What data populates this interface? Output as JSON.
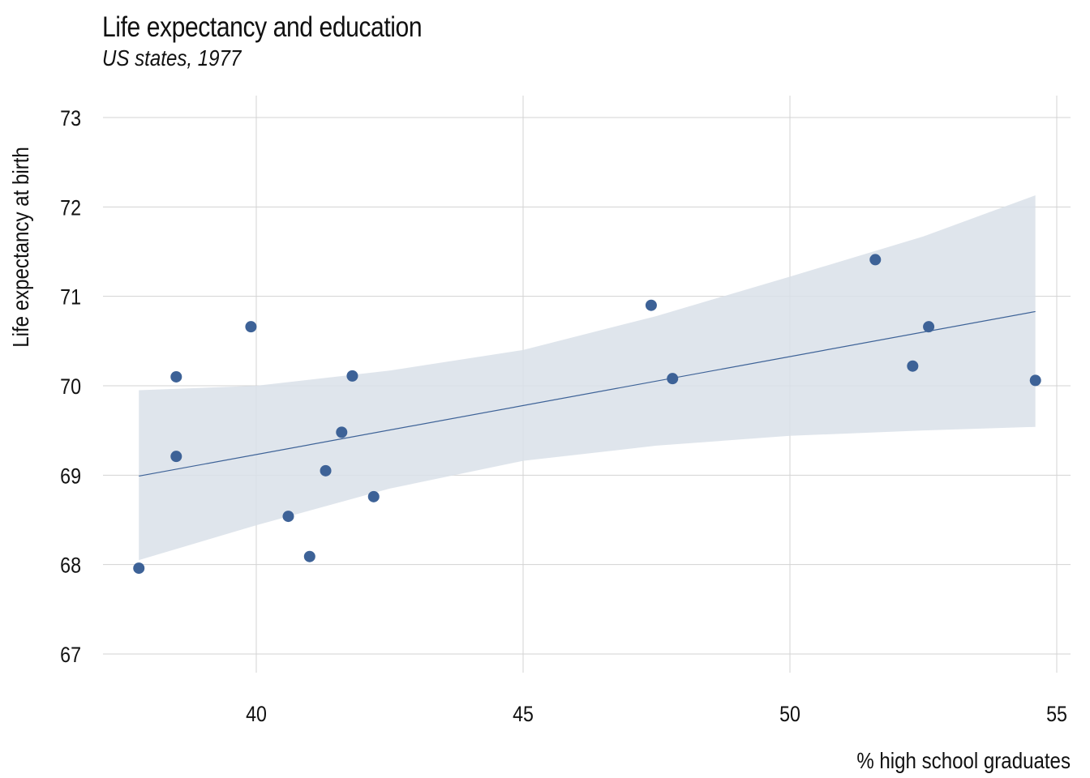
{
  "title": "Life expectancy and education",
  "subtitle": "US states, 1977",
  "colors": {
    "point": "#3d6297",
    "line": "#3d6297",
    "ribbon": "#d9e0e9",
    "grid": "#d3d3d3"
  },
  "chart_data": {
    "type": "scatter",
    "title": "Life expectancy and education",
    "subtitle": "US states, 1977",
    "xlabel": "% high school graduates",
    "ylabel": "Life expectancy at birth",
    "xlim": [
      37.1,
      55.3
    ],
    "ylim": [
      66.8,
      73.25
    ],
    "xticks": [
      40,
      45,
      50,
      55
    ],
    "yticks": [
      67,
      68,
      69,
      70,
      71,
      72,
      73
    ],
    "x_tick_labels": [
      "40",
      "45",
      "50",
      "55"
    ],
    "y_tick_labels": [
      "67",
      "68",
      "69",
      "70",
      "71",
      "72",
      "73"
    ],
    "grid": true,
    "points": [
      {
        "x": 37.8,
        "y": 67.96
      },
      {
        "x": 38.5,
        "y": 70.1
      },
      {
        "x": 38.5,
        "y": 69.21
      },
      {
        "x": 39.9,
        "y": 70.66
      },
      {
        "x": 40.6,
        "y": 68.54
      },
      {
        "x": 41.0,
        "y": 68.09
      },
      {
        "x": 41.3,
        "y": 69.05
      },
      {
        "x": 41.6,
        "y": 69.48
      },
      {
        "x": 41.8,
        "y": 70.11
      },
      {
        "x": 42.2,
        "y": 68.76
      },
      {
        "x": 47.4,
        "y": 70.9
      },
      {
        "x": 47.8,
        "y": 70.08
      },
      {
        "x": 51.6,
        "y": 71.41
      },
      {
        "x": 52.3,
        "y": 70.22
      },
      {
        "x": 52.6,
        "y": 70.66
      },
      {
        "x": 54.6,
        "y": 70.06
      }
    ],
    "trend_line": {
      "x": [
        37.8,
        54.6
      ],
      "y": [
        68.99,
        70.83
      ]
    },
    "confidence_band": [
      {
        "x": 37.8,
        "lower": 68.05,
        "upper": 69.95
      },
      {
        "x": 40.0,
        "lower": 68.44,
        "upper": 70.0
      },
      {
        "x": 42.5,
        "lower": 68.85,
        "upper": 70.17
      },
      {
        "x": 45.0,
        "lower": 69.16,
        "upper": 70.4
      },
      {
        "x": 47.5,
        "lower": 69.33,
        "upper": 70.78
      },
      {
        "x": 50.0,
        "lower": 69.44,
        "upper": 71.22
      },
      {
        "x": 52.5,
        "lower": 69.5,
        "upper": 71.67
      },
      {
        "x": 54.6,
        "lower": 69.54,
        "upper": 72.13
      }
    ]
  }
}
